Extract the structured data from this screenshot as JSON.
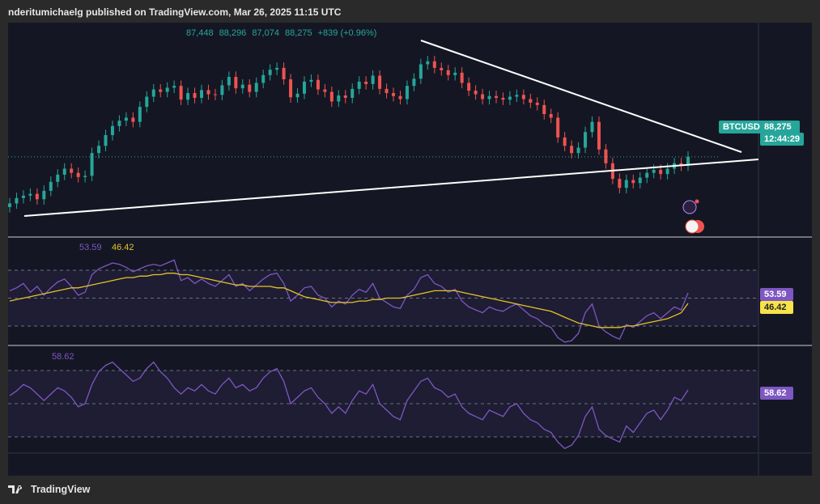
{
  "header": {
    "text": "nderitumichaelg published on TradingView.com, Mar 26, 2025 11:15 UTC"
  },
  "footer": {
    "brand": "TradingView",
    "logo_icon": "tradingview-logo-icon"
  },
  "ohlc": {
    "open": "87,448",
    "high": "88,296",
    "low": "87,074",
    "close": "88,275",
    "change": "+839 (+0.96%)"
  },
  "price_label": {
    "symbol": "BTCUSD",
    "price": "88,275",
    "countdown": "12:44:29"
  },
  "rsi_panel": {
    "value1": "53.59",
    "value2": "46.42"
  },
  "osc_panel": {
    "value": "58.62"
  },
  "colors": {
    "up": "#26a69a",
    "down": "#ef5350",
    "rsi": "#7e57c2",
    "rsi_ma": "#e6c229",
    "background": "#141723"
  },
  "chart_data": [
    {
      "type": "candlestick",
      "symbol": "BTCUSD",
      "last_price": 88275,
      "trendlines": [
        "descending resistance",
        "ascending support"
      ],
      "close_series": [
        80.5,
        81.4,
        81.8,
        82.1,
        81.2,
        82.6,
        84.1,
        85.3,
        86.3,
        85.6,
        84.9,
        85.1,
        88.9,
        90.1,
        91.9,
        93.4,
        94.3,
        94.8,
        94.1,
        96.6,
        98.3,
        99.5,
        99.1,
        99.8,
        100.1,
        97.8,
        98.9,
        98.1,
        99.4,
        98.7,
        98.6,
        100.2,
        101.6,
        99.7,
        100.3,
        99.1,
        100.6,
        101.9,
        102.8,
        103.1,
        101.2,
        98.2,
        98.8,
        100.8,
        101.1,
        99.5,
        99.1,
        97.5,
        98.5,
        98.1,
        99.6,
        100.8,
        100.4,
        101.8,
        99.6,
        98.9,
        98.4,
        97.9,
        100.1,
        101.3,
        103.7,
        104.2,
        103.1,
        102.7,
        101.9,
        102.3,
        100.6,
        99.3,
        98.7,
        97.9,
        98.4,
        98.1,
        97.8,
        98.3,
        98.6,
        97.9,
        97.3,
        96.9,
        95.4,
        94.8,
        91.5,
        90.1,
        88.9,
        89.8,
        92.4,
        94.1,
        89.5,
        87.2,
        84.6,
        83.1,
        84.4,
        83.9,
        84.8,
        85.6,
        86.1,
        85.4,
        86.3,
        87.2,
        86.8,
        88.3
      ]
    },
    {
      "type": "line",
      "name": "RSI",
      "value": 53.59,
      "signal_value": 46.42,
      "series": [
        55,
        57,
        60,
        54,
        58,
        52,
        57,
        61,
        63,
        58,
        52,
        54,
        66,
        70,
        72,
        74,
        73,
        71,
        68,
        70,
        72,
        73,
        72,
        74,
        76,
        62,
        64,
        60,
        63,
        60,
        58,
        62,
        66,
        58,
        60,
        55,
        59,
        63,
        66,
        67,
        60,
        48,
        52,
        57,
        58,
        52,
        50,
        44,
        48,
        46,
        52,
        56,
        54,
        60,
        50,
        47,
        44,
        43,
        52,
        56,
        64,
        66,
        60,
        58,
        54,
        56,
        48,
        44,
        42,
        40,
        44,
        42,
        41,
        44,
        46,
        42,
        38,
        36,
        32,
        30,
        23,
        20,
        21,
        26,
        40,
        46,
        31,
        27,
        24,
        22,
        32,
        30,
        34,
        38,
        40,
        36,
        40,
        44,
        42,
        53.59
      ],
      "signal": [
        48,
        49,
        50,
        51,
        52,
        53,
        54,
        55,
        56,
        57,
        57,
        58,
        59,
        60,
        61,
        62,
        63,
        64,
        64,
        65,
        65,
        66,
        66,
        67,
        67,
        66,
        66,
        65,
        64,
        63,
        62,
        61,
        60,
        59,
        59,
        58,
        58,
        58,
        58,
        57,
        57,
        55,
        53,
        51,
        50,
        49,
        48,
        47,
        47,
        47,
        47,
        48,
        48,
        49,
        49,
        50,
        50,
        50,
        51,
        52,
        53,
        54,
        55,
        55,
        55,
        55,
        54,
        53,
        52,
        51,
        50,
        49,
        48,
        47,
        46,
        45,
        44,
        43,
        42,
        41,
        39,
        37,
        35,
        33,
        32,
        31,
        30,
        30,
        30,
        30,
        31,
        31,
        32,
        33,
        34,
        35,
        36,
        38,
        40,
        46.42
      ]
    },
    {
      "type": "line",
      "name": "Oscillator",
      "value": 58.62,
      "series": [
        55,
        58,
        62,
        60,
        56,
        52,
        56,
        60,
        58,
        54,
        48,
        50,
        62,
        70,
        74,
        76,
        72,
        68,
        64,
        66,
        72,
        76,
        70,
        66,
        60,
        56,
        60,
        58,
        62,
        58,
        56,
        62,
        66,
        60,
        62,
        58,
        60,
        66,
        70,
        72,
        64,
        50,
        54,
        58,
        60,
        54,
        50,
        44,
        48,
        44,
        52,
        58,
        56,
        62,
        50,
        46,
        42,
        40,
        52,
        58,
        64,
        66,
        60,
        58,
        54,
        56,
        48,
        44,
        42,
        40,
        46,
        44,
        42,
        48,
        50,
        44,
        40,
        38,
        34,
        32,
        26,
        22,
        24,
        30,
        42,
        48,
        34,
        30,
        28,
        26,
        36,
        32,
        38,
        44,
        46,
        40,
        46,
        54,
        52,
        58.62
      ]
    }
  ]
}
